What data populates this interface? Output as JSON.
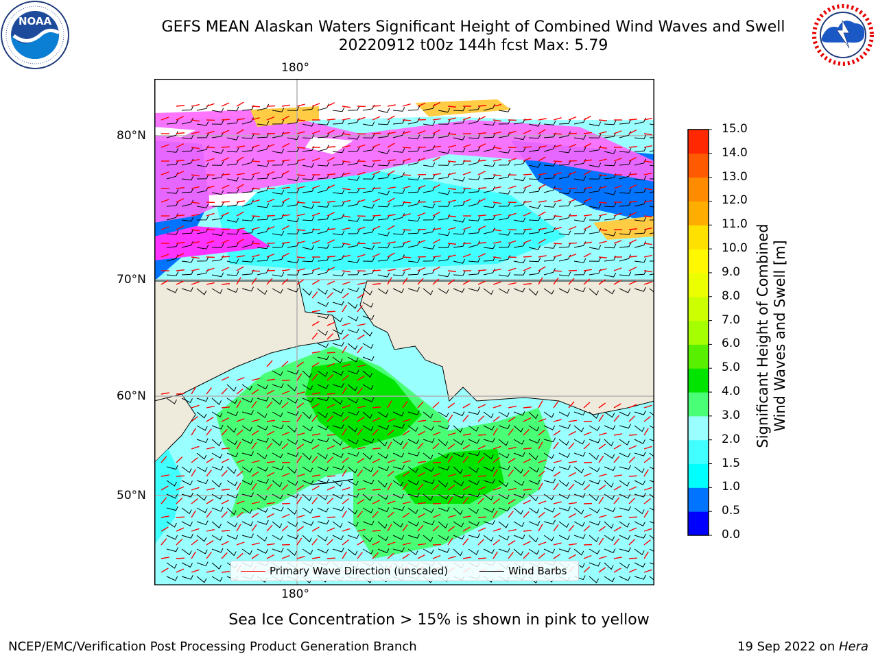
{
  "header": {
    "title_line1": "GEFS MEAN Alaskan Waters Significant Height of Combined Wind Waves and Swell",
    "title_line2": "20220912 t00z 144h fcst   Max: 5.79"
  },
  "logos": {
    "noaa": {
      "text": "NOAA",
      "ring_text": "NATIONAL OCEANIC AND ATMOSPHERIC ADMINISTRATION · U.S. DEPARTMENT OF COMMERCE"
    },
    "nws": {
      "ring_text": "NATIONAL WEATHER SERVICE"
    }
  },
  "map": {
    "lon_label_top": "180°",
    "lon_label_bottom": "180°",
    "lat_labels": [
      "80°N",
      "70°N",
      "60°N",
      "50°N"
    ],
    "colors": {
      "land": "#efebdc",
      "ocean_default": "#99ffff",
      "frame": "#000000",
      "grid": "#b0b0b0",
      "wave_arrow": "#ff0000",
      "wind_barb": "#000000"
    }
  },
  "legend": {
    "primary_wave": "Primary Wave Direction (unscaled)",
    "wind_barbs": "Wind Barbs"
  },
  "colorbar": {
    "title_line1": "Significant Height of Combined",
    "title_line2": "Wind Waves and Swell [m]",
    "ticks": [
      "15.0",
      "14.0",
      "13.0",
      "12.0",
      "11.0",
      "10.0",
      "9.0",
      "8.0",
      "7.0",
      "6.0",
      "5.0",
      "4.0",
      "3.0",
      "2.0",
      "1.5",
      "1.0",
      "0.5",
      "0.0"
    ],
    "colors_bottom_to_top": [
      "#0000ff",
      "#0073ff",
      "#00ffff",
      "#42ffff",
      "#99ffff",
      "#49ff75",
      "#00e400",
      "#59f000",
      "#a6ff00",
      "#ccff00",
      "#ebff00",
      "#fff800",
      "#ffe100",
      "#ffae00",
      "#ff8c00",
      "#ff5a00",
      "#ff2800"
    ]
  },
  "caption": "Sea Ice Concentration > 15% is shown in pink to yellow",
  "footer": {
    "left": "NCEP/EMC/Verification Post Processing Product Generation Branch",
    "right_date": "19 Sep 2022 on ",
    "right_host": "Hera"
  }
}
